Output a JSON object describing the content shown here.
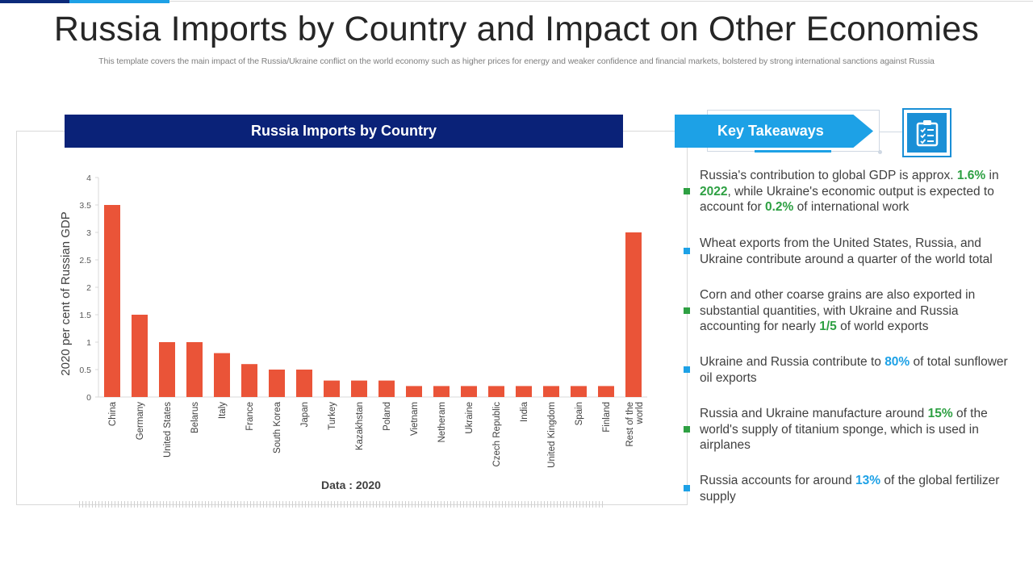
{
  "title": "Russia Imports by Country and Impact on Other Economies",
  "subtitle": "This template covers the main impact of the Russia/Ukraine conflict on the world economy such as higher prices for energy and weaker confidence and financial markets, bolstered by strong international sanctions against Russia",
  "chart_panel": {
    "header": "Russia Imports by Country",
    "footer_note": "Data : 2020"
  },
  "chart_data": {
    "type": "bar",
    "title": "Russia Imports by Country",
    "xlabel": "Data : 2020",
    "ylabel": "2020 per cent of Russian GDP",
    "ylim": [
      0,
      4
    ],
    "yticks": [
      "0",
      "0.5",
      "1",
      "1.5",
      "2",
      "2.5",
      "3",
      "3.5",
      "4"
    ],
    "categories": [
      "China",
      "Germany",
      "United States",
      "Belarus",
      "Italy",
      "France",
      "South Korea",
      "Japan",
      "Turkey",
      "Kazakhstan",
      "Poland",
      "Vietnam",
      "Netheram",
      "Ukraine",
      "Czech Republic",
      "India",
      "United Kingdom",
      "Spain",
      "Finland",
      "Rest of the world"
    ],
    "values": [
      3.5,
      1.5,
      1.0,
      1.0,
      0.8,
      0.6,
      0.5,
      0.5,
      0.3,
      0.3,
      0.3,
      0.2,
      0.2,
      0.2,
      0.2,
      0.2,
      0.2,
      0.2,
      0.2,
      3.0
    ],
    "bar_color": "#ea5438",
    "grid": false
  },
  "key_takeaways": {
    "header": "Key Takeaways",
    "icon": "clipboard-checklist-icon",
    "colors": {
      "green": "#2ea043",
      "blue": "#1da1e6"
    },
    "items": [
      {
        "bullet": "green",
        "parts": [
          {
            "t": "Russia's contribution to global GDP is approx. "
          },
          {
            "t": "1.6%",
            "hl": "g"
          },
          {
            "t": " in "
          },
          {
            "t": "2022",
            "hl": "g"
          },
          {
            "t": ", while Ukraine's economic output is expected to account for "
          },
          {
            "t": "0.2%",
            "hl": "g"
          },
          {
            "t": " of international work"
          }
        ]
      },
      {
        "bullet": "blue",
        "parts": [
          {
            "t": "Wheat exports from the United States, Russia, and Ukraine contribute around a quarter of the world total"
          }
        ]
      },
      {
        "bullet": "green",
        "parts": [
          {
            "t": "Corn and other coarse grains are also exported in substantial quantities, with Ukraine and Russia accounting for nearly "
          },
          {
            "t": "1/5",
            "hl": "g"
          },
          {
            "t": " of world exports"
          }
        ]
      },
      {
        "bullet": "blue",
        "parts": [
          {
            "t": "Ukraine and Russia contribute to "
          },
          {
            "t": "80%",
            "hl": "b"
          },
          {
            "t": " of total sunflower  oil exports"
          }
        ]
      },
      {
        "bullet": "green",
        "parts": [
          {
            "t": "Russia and Ukraine manufacture  around "
          },
          {
            "t": "15%",
            "hl": "g"
          },
          {
            "t": " of the world's supply  of titanium sponge, which is used in airplanes"
          }
        ]
      },
      {
        "bullet": "blue",
        "parts": [
          {
            "t": "Russia accounts for around "
          },
          {
            "t": "13%",
            "hl": "b"
          },
          {
            "t": " of the global fertilizer supply"
          }
        ]
      }
    ]
  }
}
